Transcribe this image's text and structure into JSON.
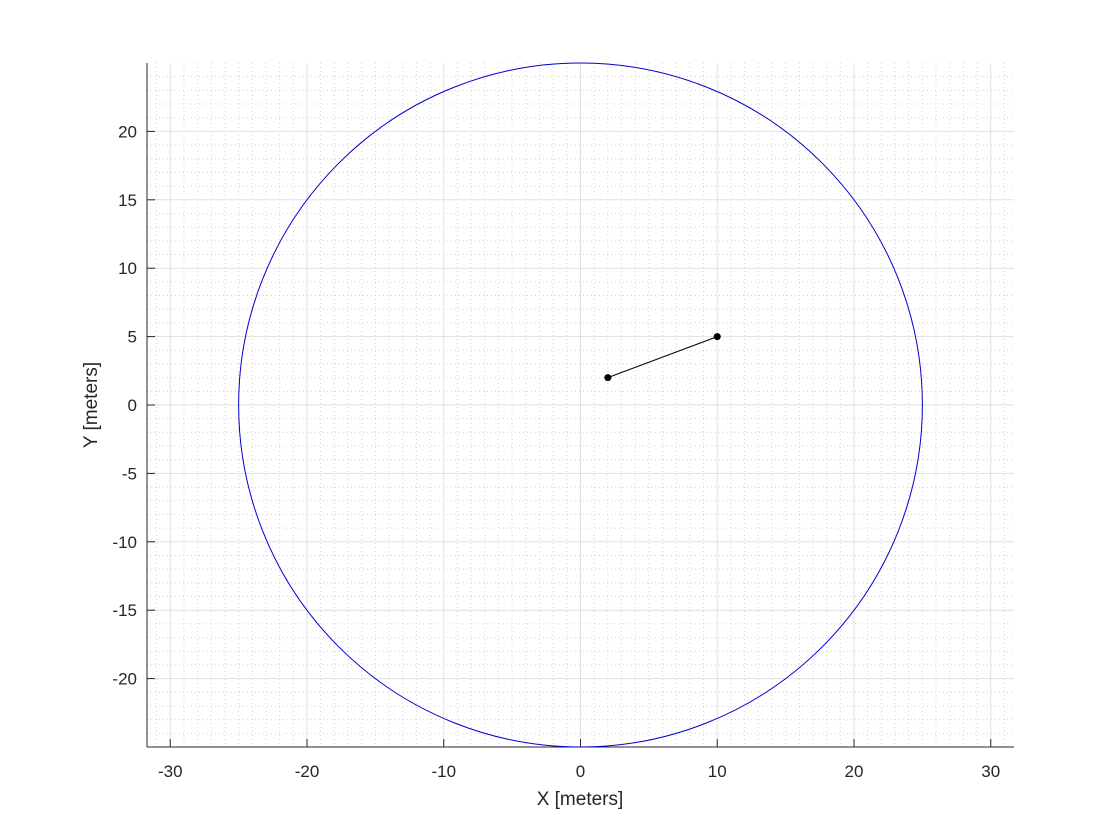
{
  "chart_data": {
    "type": "line",
    "title": "",
    "xlabel": "X [meters]",
    "ylabel": "Y [meters]",
    "xlim": [
      -31.7,
      31.7
    ],
    "ylim": [
      -25,
      25
    ],
    "xticks": [
      -30,
      -20,
      -10,
      0,
      10,
      20,
      30
    ],
    "yticks": [
      -20,
      -15,
      -10,
      -5,
      0,
      5,
      10,
      15,
      20
    ],
    "xtick_labels": [
      "-30",
      "-20",
      "-10",
      "0",
      "10",
      "20",
      "30"
    ],
    "ytick_labels": [
      "-20",
      "-15",
      "-10",
      "-5",
      "0",
      "5",
      "10",
      "15",
      "20"
    ],
    "grid": true,
    "minor_grid": true,
    "axis_equal": true,
    "series": [
      {
        "kind": "circle",
        "center": [
          0,
          0
        ],
        "radius": 25,
        "color": "#0000cc"
      },
      {
        "kind": "segment",
        "x": [
          2,
          10
        ],
        "y": [
          2,
          5
        ],
        "color": "#000000",
        "markers": true
      }
    ]
  }
}
